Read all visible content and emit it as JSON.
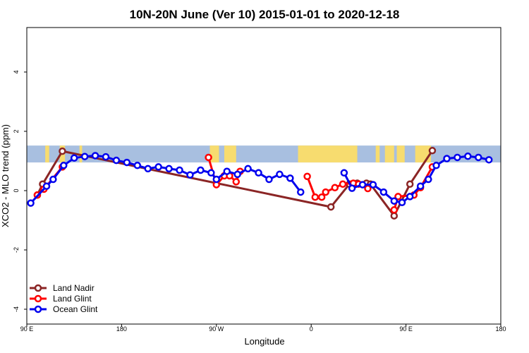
{
  "chart_data": {
    "type": "line",
    "title": "10N-20N June (Ver 10)   2015-01-01 to 2020-12-18",
    "xlabel": "Longitude",
    "ylabel": "XCO2 - MLO trend (ppm)",
    "xlim": [
      90,
      450
    ],
    "ylim": [
      -4.5,
      5.5
    ],
    "x_ticks": [
      {
        "value": 90,
        "label": "90 E"
      },
      {
        "value": 162,
        "label": "180"
      },
      {
        "value": 234,
        "label": "90 W"
      },
      {
        "value": 306,
        "label": "0"
      },
      {
        "value": 378,
        "label": "90 E"
      },
      {
        "value": 450,
        "label": "180"
      }
    ],
    "y_ticks": [
      {
        "value": -4,
        "label": "-4"
      },
      {
        "value": -2,
        "label": "-2"
      },
      {
        "value": 0,
        "label": "0"
      },
      {
        "value": 2,
        "label": "2"
      },
      {
        "value": 4,
        "label": "4"
      }
    ],
    "map_strip": {
      "y_range": [
        0.95,
        1.52
      ],
      "ocean_color": "#a8bfe0",
      "land_color": "#f7dc6f",
      "land_spans": [
        [
          104,
          107
        ],
        [
          115,
          119
        ],
        [
          130,
          132
        ],
        [
          229,
          236
        ],
        [
          240,
          249
        ],
        [
          296,
          341
        ],
        [
          355,
          358
        ],
        [
          362,
          369
        ],
        [
          371,
          377
        ],
        [
          385,
          397
        ]
      ]
    },
    "legend_position": "bottom-left",
    "series": [
      {
        "name": "Land Nadir",
        "color": "#8b2525",
        "points": [
          [
            98,
            -0.15
          ],
          [
            102,
            0.22
          ],
          [
            117,
            1.33
          ],
          [
            321,
            -0.55
          ],
          [
            335,
            0.22
          ],
          [
            341,
            0.25
          ],
          [
            348,
            0.25
          ],
          [
            351,
            0.22
          ],
          [
            369,
            -0.85
          ],
          [
            381,
            0.22
          ],
          [
            398,
            1.35
          ]
        ]
      },
      {
        "name": "Land Glint",
        "color": "#ff0000",
        "points": [
          [
            98,
            -0.15
          ],
          [
            103,
            0.05
          ],
          [
            117,
            0.8
          ],
          [
            null,
            null
          ],
          [
            228,
            1.12
          ],
          [
            234,
            0.2
          ],
          [
            240,
            0.5
          ],
          [
            244,
            0.5
          ],
          [
            249,
            0.3
          ],
          [
            252,
            0.65
          ],
          [
            null,
            null
          ],
          [
            303,
            0.48
          ],
          [
            309,
            -0.22
          ],
          [
            314,
            -0.22
          ],
          [
            317,
            -0.05
          ],
          [
            324,
            0.1
          ],
          [
            330,
            0.22
          ],
          [
            338,
            0.25
          ],
          [
            342,
            0.22
          ],
          [
            349,
            0.07
          ],
          [
            null,
            null
          ],
          [
            369,
            -0.65
          ],
          [
            372,
            -0.2
          ],
          [
            384,
            -0.15
          ],
          [
            389,
            0.1
          ],
          [
            398,
            0.8
          ]
        ]
      },
      {
        "name": "Ocean Glint",
        "color": "#0000ee",
        "points": [
          [
            93,
            -0.42
          ],
          [
            105,
            0.15
          ],
          [
            110,
            0.38
          ],
          [
            118,
            0.85
          ],
          [
            126,
            1.1
          ],
          [
            134,
            1.15
          ],
          [
            142,
            1.18
          ],
          [
            150,
            1.14
          ],
          [
            158,
            1.02
          ],
          [
            166,
            0.95
          ],
          [
            174,
            0.85
          ],
          [
            182,
            0.74
          ],
          [
            190,
            0.8
          ],
          [
            198,
            0.74
          ],
          [
            206,
            0.69
          ],
          [
            214,
            0.53
          ],
          [
            222,
            0.69
          ],
          [
            230,
            0.6
          ],
          [
            234,
            0.38
          ],
          [
            242,
            0.65
          ],
          [
            250,
            0.55
          ],
          [
            258,
            0.74
          ],
          [
            266,
            0.6
          ],
          [
            274,
            0.38
          ],
          [
            282,
            0.55
          ],
          [
            290,
            0.42
          ],
          [
            298,
            -0.05
          ],
          [
            null,
            null
          ],
          [
            331,
            0.6
          ],
          [
            337,
            0.08
          ],
          [
            345,
            0.2
          ],
          [
            353,
            0.2
          ],
          [
            361,
            -0.05
          ],
          [
            369,
            -0.35
          ],
          [
            375,
            -0.4
          ],
          [
            381,
            -0.2
          ],
          [
            389,
            0.15
          ],
          [
            395,
            0.38
          ],
          [
            401,
            0.85
          ],
          [
            409,
            1.08
          ],
          [
            417,
            1.12
          ],
          [
            425,
            1.16
          ],
          [
            433,
            1.12
          ],
          [
            441,
            1.04
          ]
        ]
      }
    ]
  }
}
